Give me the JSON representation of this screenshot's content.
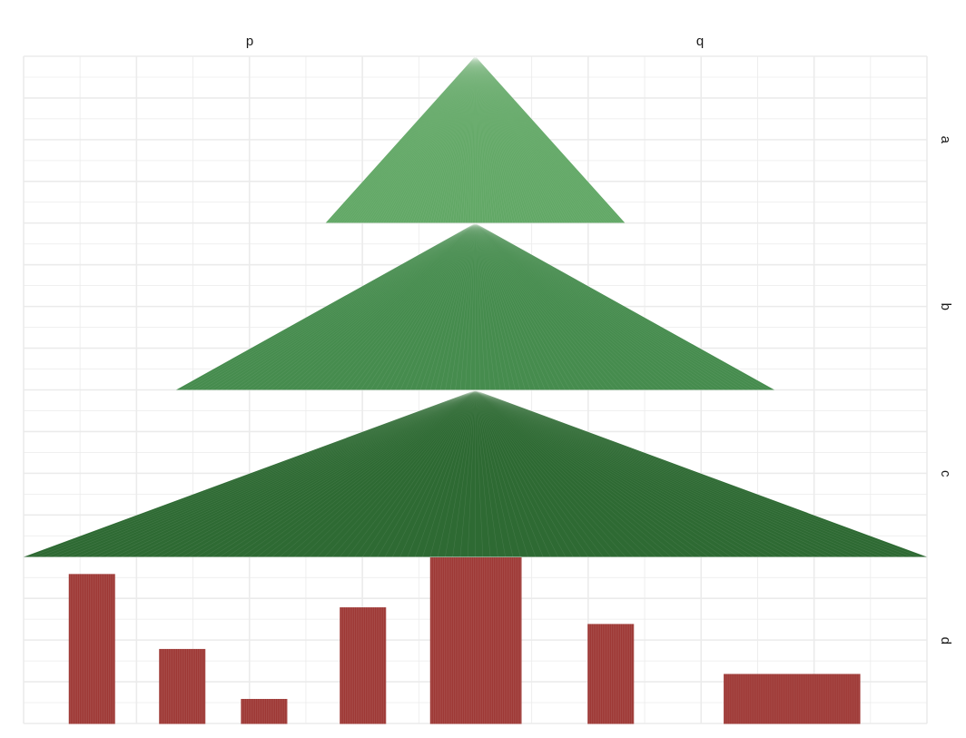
{
  "chart_data": {
    "type": "bar",
    "description_style": "faceted plot: columns p and q, rows a, b, c, d",
    "facets": {
      "columns": [
        "p",
        "q"
      ],
      "rows": [
        "a",
        "b",
        "c",
        "d"
      ]
    },
    "x_domain": [
      -8,
      8
    ],
    "row_height_units": 8,
    "tree_layers": [
      {
        "row": "a",
        "half_width": 2.65,
        "color": "#62a866"
      },
      {
        "row": "b",
        "half_width": 5.3,
        "color": "#468c4e"
      },
      {
        "row": "c",
        "half_width": 8.0,
        "color": "#2e6a33"
      }
    ],
    "bars": {
      "row": "d",
      "color": "#9e3835",
      "items": [
        {
          "x_start": -7.2,
          "x_end": -6.38,
          "height": 7.2
        },
        {
          "x_start": -5.6,
          "x_end": -4.78,
          "height": 3.6
        },
        {
          "x_start": -4.15,
          "x_end": -3.33,
          "height": 1.2
        },
        {
          "x_start": -2.4,
          "x_end": -1.58,
          "height": 5.6
        },
        {
          "x_start": -0.8,
          "x_end": 0.82,
          "height": 8.0
        },
        {
          "x_start": 1.99,
          "x_end": 2.81,
          "height": 4.8
        },
        {
          "x_start": 4.4,
          "x_end": 6.82,
          "height": 2.4
        }
      ]
    },
    "grid": true,
    "grid_color": "#ebebeb",
    "background": "#ffffff"
  }
}
